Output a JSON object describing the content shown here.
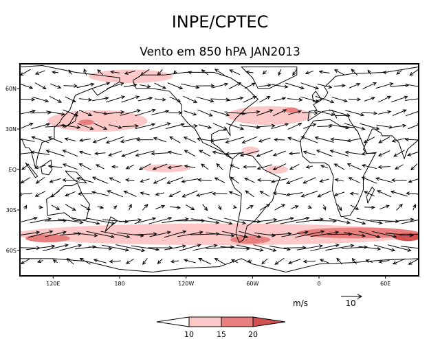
{
  "title": "INPE/CPTEC",
  "subtitle": "Vento em 850 hPA JAN2013",
  "lon_labels": [
    "120E",
    "180",
    "120W",
    "60W",
    "0",
    "60E"
  ],
  "lon_values": [
    120,
    180,
    240,
    300,
    360,
    420
  ],
  "lat_labels": [
    "60N",
    "30N",
    "EQ",
    "30S",
    "60S"
  ],
  "lat_values": [
    60,
    30,
    0,
    -30,
    -60
  ],
  "colorbar": {
    "unit": "m/s",
    "levels": [
      "10",
      "15",
      "20"
    ],
    "colors": [
      "#ffffff",
      "#fcc8c8",
      "#e88080",
      "#d25050"
    ]
  },
  "reference_vector": {
    "label": "10",
    "value": 10
  },
  "colors": {
    "light": "#fcc8c8",
    "mid": "#e88080",
    "dark": "#d25050"
  },
  "chart_data": {
    "type": "vector-map",
    "variable": "wind speed 850 hPa (m/s)",
    "lon_range": [
      90,
      450
    ],
    "lat_range": [
      -79,
      75
    ],
    "shaded_regions": [
      {
        "name": "southern-westerlies",
        "lon": 270,
        "lat": -48,
        "dlon": 185,
        "dlat": 8,
        "level": 1
      },
      {
        "name": "south-indian-core",
        "lon": 115,
        "lat": -51,
        "dlon": 20,
        "dlat": 3,
        "level": 2
      },
      {
        "name": "drake-core",
        "lon": 298,
        "lat": -52,
        "dlon": 18,
        "dlat": 3,
        "level": 2
      },
      {
        "name": "south-atlantic-core",
        "lon": 395,
        "lat": -47,
        "dlon": 55,
        "dlat": 4,
        "level": 2
      },
      {
        "name": "south-indian-east-core",
        "lon": 440,
        "lat": -50,
        "dlon": 12,
        "dlat": 3,
        "level": 3
      },
      {
        "name": "north-pacific-jet",
        "lon": 160,
        "lat": 36,
        "dlon": 45,
        "dlat": 8,
        "level": 1
      },
      {
        "name": "north-pacific-core",
        "lon": 150,
        "lat": 35,
        "dlon": 7,
        "dlat": 2,
        "level": 2
      },
      {
        "name": "north-atlantic-jet",
        "lon": 315,
        "lat": 40,
        "dlon": 38,
        "dlat": 7,
        "level": 1
      },
      {
        "name": "north-atlantic-core",
        "lon": 335,
        "lat": 44,
        "dlon": 6,
        "dlat": 2,
        "level": 2
      },
      {
        "name": "arctic-pacific",
        "lon": 190,
        "lat": 69,
        "dlon": 38,
        "dlat": 5,
        "level": 1
      },
      {
        "name": "equatorial-pacific",
        "lon": 222,
        "lat": 1,
        "dlon": 22,
        "dlat": 3,
        "level": 1
      },
      {
        "name": "equatorial-atlantic",
        "lon": 322,
        "lat": 0,
        "dlon": 10,
        "dlat": 3,
        "level": 1
      },
      {
        "name": "caribbean",
        "lon": 298,
        "lat": 14,
        "dlon": 8,
        "dlat": 3,
        "level": 1
      }
    ],
    "zonal_profile": [
      {
        "lat_max": 80,
        "lat_min": 65,
        "u": -3
      },
      {
        "lat_max": 65,
        "lat_min": 45,
        "u": 7
      },
      {
        "lat_max": 45,
        "lat_min": 25,
        "u": 8
      },
      {
        "lat_max": 25,
        "lat_min": 5,
        "u": -7
      },
      {
        "lat_max": 5,
        "lat_min": -5,
        "u": -5
      },
      {
        "lat_max": -5,
        "lat_min": -25,
        "u": -6
      },
      {
        "lat_max": -25,
        "lat_min": -35,
        "u": 3
      },
      {
        "lat_max": -35,
        "lat_min": -60,
        "u": 12
      },
      {
        "lat_max": -60,
        "lat_min": -80,
        "u": -4
      }
    ],
    "coastlines": [
      [
        [
          -168,
          66
        ],
        [
          -160,
          70
        ],
        [
          -140,
          70
        ],
        [
          -120,
          72
        ],
        [
          -95,
          72
        ],
        [
          -80,
          68
        ],
        [
          -65,
          60
        ],
        [
          -55,
          52
        ],
        [
          -66,
          45
        ],
        [
          -75,
          38
        ],
        [
          -81,
          31
        ],
        [
          -80,
          25
        ],
        [
          -83,
          29
        ],
        [
          -90,
          29
        ],
        [
          -97,
          26
        ],
        [
          -97,
          20
        ],
        [
          -90,
          16
        ],
        [
          -83,
          10
        ],
        [
          -78,
          8
        ],
        [
          -85,
          12
        ],
        [
          -92,
          15
        ],
        [
          -105,
          20
        ],
        [
          -112,
          30
        ],
        [
          -118,
          34
        ],
        [
          -124,
          40
        ],
        [
          -124,
          48
        ],
        [
          -135,
          58
        ],
        [
          -150,
          60
        ],
        [
          -165,
          60
        ],
        [
          -168,
          66
        ]
      ],
      [
        [
          -78,
          8
        ],
        [
          -72,
          12
        ],
        [
          -60,
          10
        ],
        [
          -50,
          0
        ],
        [
          -35,
          -6
        ],
        [
          -39,
          -14
        ],
        [
          -42,
          -23
        ],
        [
          -48,
          -28
        ],
        [
          -58,
          -38
        ],
        [
          -65,
          -42
        ],
        [
          -68,
          -52
        ],
        [
          -72,
          -54
        ],
        [
          -75,
          -48
        ],
        [
          -73,
          -38
        ],
        [
          -71,
          -30
        ],
        [
          -70,
          -18
        ],
        [
          -76,
          -14
        ],
        [
          -81,
          -5
        ],
        [
          -80,
          0
        ],
        [
          -78,
          8
        ]
      ],
      [
        [
          -55,
          60
        ],
        [
          -45,
          60
        ],
        [
          -20,
          70
        ],
        [
          -20,
          76
        ],
        [
          -70,
          76
        ],
        [
          -60,
          68
        ],
        [
          -55,
          60
        ]
      ],
      [
        [
          -17,
          21
        ],
        [
          -10,
          30
        ],
        [
          -5,
          36
        ],
        [
          10,
          37
        ],
        [
          20,
          32
        ],
        [
          32,
          31
        ],
        [
          35,
          28
        ],
        [
          43,
          12
        ],
        [
          51,
          12
        ],
        [
          40,
          -5
        ],
        [
          40,
          -15
        ],
        [
          35,
          -25
        ],
        [
          28,
          -34
        ],
        [
          20,
          -35
        ],
        [
          17,
          -29
        ],
        [
          12,
          -15
        ],
        [
          13,
          -5
        ],
        [
          9,
          3
        ],
        [
          5,
          5
        ],
        [
          -8,
          5
        ],
        [
          -15,
          10
        ],
        [
          -17,
          21
        ]
      ],
      [
        [
          -10,
          36
        ],
        [
          -9,
          43
        ],
        [
          -2,
          44
        ],
        [
          -5,
          48
        ],
        [
          5,
          53
        ],
        [
          8,
          57
        ],
        [
          5,
          61
        ],
        [
          15,
          69
        ],
        [
          30,
          71
        ],
        [
          60,
          72
        ],
        [
          89.9,
          76
        ]
      ],
      [
        [
          89.9,
          22
        ],
        [
          80,
          15
        ],
        [
          77,
          8
        ],
        [
          72,
          20
        ],
        [
          66,
          25
        ],
        [
          57,
          25
        ],
        [
          56,
          27
        ],
        [
          50,
          30
        ],
        [
          48,
          30
        ],
        [
          40,
          15
        ],
        [
          43,
          12
        ]
      ],
      [
        [
          35,
          28
        ],
        [
          32,
          31
        ],
        [
          28,
          36
        ],
        [
          26,
          40
        ],
        [
          15,
          40
        ],
        [
          16,
          38
        ],
        [
          12,
          44
        ],
        [
          3,
          43
        ],
        [
          -10,
          36
        ]
      ],
      [
        [
          90.5,
          76
        ],
        [
          110,
          77
        ],
        [
          140,
          72
        ],
        [
          160,
          70
        ],
        [
          180,
          68
        ],
        [
          180,
          65
        ],
        [
          170,
          60
        ],
        [
          160,
          55
        ],
        [
          155,
          60
        ],
        [
          140,
          55
        ],
        [
          135,
          44
        ],
        [
          128,
          38
        ],
        [
          126,
          35
        ],
        [
          121,
          31
        ],
        [
          121,
          23
        ],
        [
          110,
          20
        ],
        [
          106,
          10
        ],
        [
          104,
          1
        ],
        [
          100,
          14
        ],
        [
          98,
          16
        ],
        [
          95,
          16
        ],
        [
          92,
          22
        ],
        [
          90.5,
          22
        ]
      ],
      [
        [
          114,
          -22
        ],
        [
          122,
          -18
        ],
        [
          130,
          -12
        ],
        [
          137,
          -12
        ],
        [
          142,
          -10
        ],
        [
          146,
          -18
        ],
        [
          153,
          -26
        ],
        [
          150,
          -37
        ],
        [
          140,
          -38
        ],
        [
          130,
          -32
        ],
        [
          115,
          -34
        ],
        [
          114,
          -22
        ]
      ],
      [
        [
          109,
          2
        ],
        [
          118,
          7
        ],
        [
          119,
          0
        ],
        [
          116,
          -4
        ],
        [
          110,
          -3
        ],
        [
          109,
          2
        ]
      ],
      [
        [
          95,
          5
        ],
        [
          104,
          -6
        ],
        [
          106,
          -5
        ],
        [
          98,
          3
        ],
        [
          95,
          5
        ]
      ],
      [
        [
          131,
          -1
        ],
        [
          141,
          -2
        ],
        [
          150,
          -10
        ],
        [
          141,
          -9
        ],
        [
          134,
          -4
        ],
        [
          131,
          -1
        ]
      ],
      [
        [
          130,
          31
        ],
        [
          140,
          36
        ],
        [
          142,
          43
        ],
        [
          140,
          41
        ],
        [
          135,
          34
        ],
        [
          130,
          31
        ]
      ],
      [
        [
          -5,
          50
        ],
        [
          2,
          52
        ],
        [
          -3,
          58
        ],
        [
          -6,
          55
        ],
        [
          -5,
          50
        ]
      ],
      [
        [
          44,
          -25
        ],
        [
          50,
          -15
        ],
        [
          48,
          -13
        ],
        [
          43,
          -20
        ],
        [
          44,
          -25
        ]
      ],
      [
        [
          172,
          -35
        ],
        [
          178,
          -38
        ],
        [
          172,
          -42
        ],
        [
          167,
          -46
        ],
        [
          172,
          -35
        ]
      ],
      [
        [
          -180,
          -74
        ],
        [
          -150,
          -76
        ],
        [
          -120,
          -73
        ],
        [
          -90,
          -72
        ],
        [
          -70,
          -66
        ],
        [
          -60,
          -70
        ],
        [
          -30,
          -76
        ],
        [
          0,
          -70
        ],
        [
          30,
          -69
        ],
        [
          60,
          -67
        ],
        [
          90.0,
          -66
        ]
      ],
      [
        [
          90.5,
          -66
        ],
        [
          120,
          -66
        ],
        [
          150,
          -68
        ],
        [
          170,
          -72
        ],
        [
          180,
          -74
        ]
      ]
    ]
  }
}
